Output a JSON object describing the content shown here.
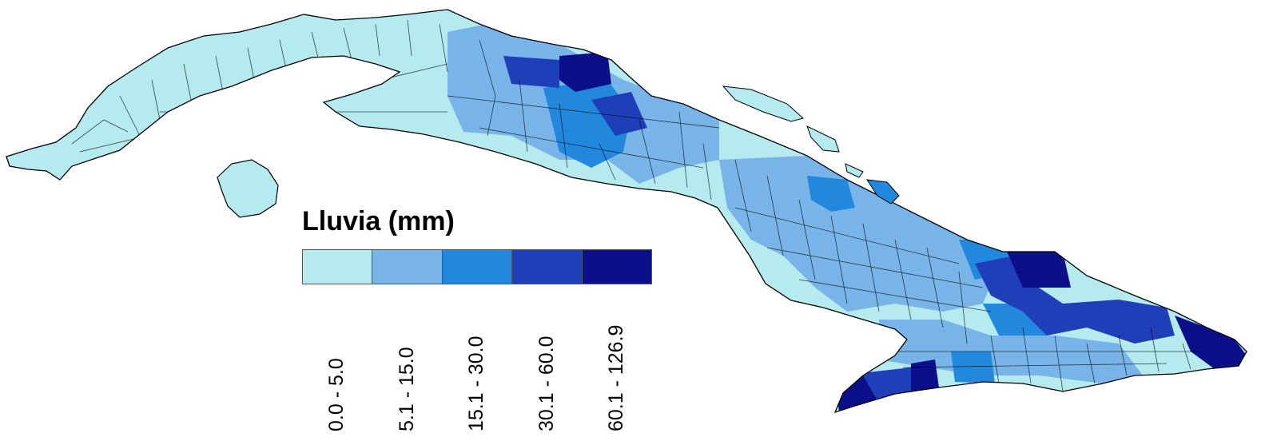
{
  "legend": {
    "title": "Lluvia (mm)",
    "classes": [
      {
        "label": "0.0 - 5.0",
        "color": "#b5eaef"
      },
      {
        "label": "5.1 - 15.0",
        "color": "#78b4e8"
      },
      {
        "label": "15.1 - 30.0",
        "color": "#2288dd"
      },
      {
        "label": "30.1 - 60.0",
        "color": "#1f3fb8"
      },
      {
        "label": "60.1 - 126.9",
        "color": "#0b0f8a"
      }
    ]
  },
  "map": {
    "region": "Cuba",
    "outline_color": "#000000",
    "background_color": "#ffffff"
  }
}
